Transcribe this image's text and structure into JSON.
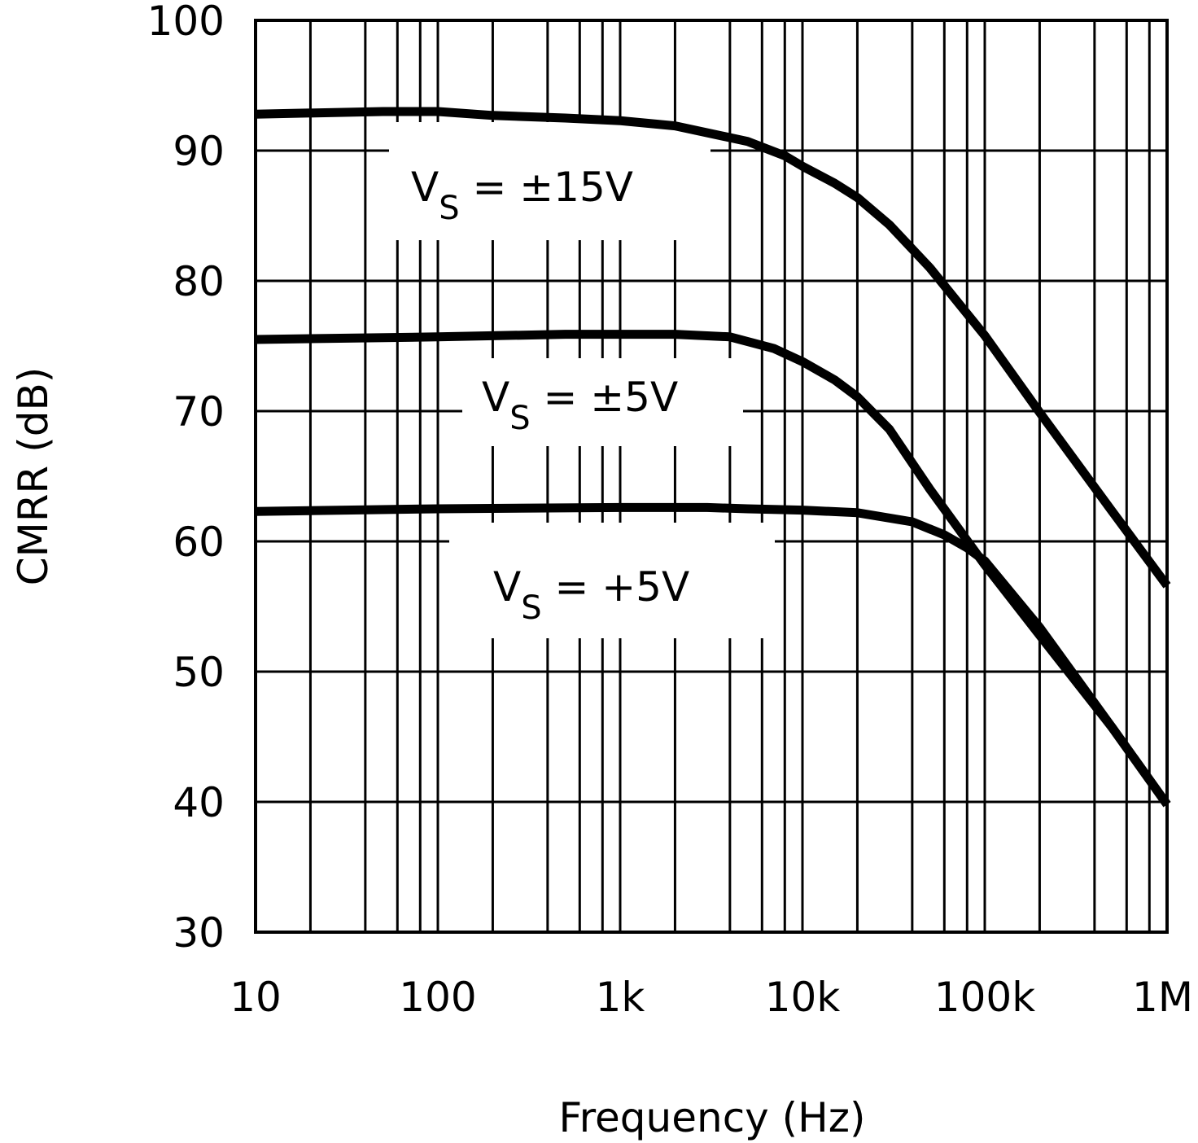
{
  "chart_data": {
    "type": "line",
    "x_scale": "log",
    "xlim": [
      10,
      1000000
    ],
    "ylim": [
      30,
      100
    ],
    "xlabel": "Frequency (Hz)",
    "ylabel": "CMRR (dB)",
    "grid": true,
    "x_ticks": [
      {
        "value": 10,
        "label": "10"
      },
      {
        "value": 100,
        "label": "100"
      },
      {
        "value": 1000,
        "label": "1k"
      },
      {
        "value": 10000,
        "label": "10k"
      },
      {
        "value": 100000,
        "label": "100k"
      },
      {
        "value": 1000000,
        "label": "1M"
      }
    ],
    "y_ticks": [
      {
        "value": 30,
        "label": "30"
      },
      {
        "value": 40,
        "label": "40"
      },
      {
        "value": 50,
        "label": "50"
      },
      {
        "value": 60,
        "label": "60"
      },
      {
        "value": 70,
        "label": "70"
      },
      {
        "value": 80,
        "label": "80"
      },
      {
        "value": 90,
        "label": "90"
      },
      {
        "value": 100,
        "label": "100"
      }
    ],
    "series": [
      {
        "name": "VS = ±15V",
        "label_main": "V",
        "label_sub": "S",
        "label_rest": " = ±15V",
        "points": [
          [
            10,
            92.8
          ],
          [
            50,
            93.0
          ],
          [
            100,
            93.0
          ],
          [
            200,
            92.7
          ],
          [
            500,
            92.5
          ],
          [
            1000,
            92.3
          ],
          [
            2000,
            91.9
          ],
          [
            5000,
            90.7
          ],
          [
            8000,
            89.6
          ],
          [
            10000,
            88.8
          ],
          [
            15000,
            87.5
          ],
          [
            20000,
            86.4
          ],
          [
            30000,
            84.3
          ],
          [
            50000,
            81.0
          ],
          [
            100000,
            75.8
          ],
          [
            200000,
            69.9
          ],
          [
            500000,
            62.3
          ],
          [
            1000000,
            56.6
          ]
        ]
      },
      {
        "name": "VS = ±5V",
        "label_main": "V",
        "label_sub": "S",
        "label_rest": " = ±5V",
        "points": [
          [
            10,
            75.5
          ],
          [
            100,
            75.7
          ],
          [
            500,
            75.9
          ],
          [
            1000,
            75.9
          ],
          [
            2000,
            75.9
          ],
          [
            4000,
            75.7
          ],
          [
            7000,
            74.8
          ],
          [
            10000,
            73.8
          ],
          [
            15000,
            72.4
          ],
          [
            20000,
            71.1
          ],
          [
            30000,
            68.6
          ],
          [
            50000,
            64.0
          ],
          [
            100000,
            58.2
          ],
          [
            200000,
            52.8
          ],
          [
            500000,
            45.7
          ],
          [
            1000000,
            39.8
          ]
        ]
      },
      {
        "name": "VS = +5V",
        "label_main": "V",
        "label_sub": "S",
        "label_rest": " = +5V",
        "points": [
          [
            10,
            62.3
          ],
          [
            100,
            62.5
          ],
          [
            1000,
            62.6
          ],
          [
            3000,
            62.6
          ],
          [
            5000,
            62.5
          ],
          [
            10000,
            62.4
          ],
          [
            20000,
            62.2
          ],
          [
            40000,
            61.5
          ],
          [
            60000,
            60.5
          ],
          [
            80000,
            59.5
          ],
          [
            100000,
            58.5
          ],
          [
            200000,
            53.4
          ],
          [
            500000,
            45.7
          ],
          [
            1000000,
            39.8
          ]
        ]
      }
    ]
  }
}
